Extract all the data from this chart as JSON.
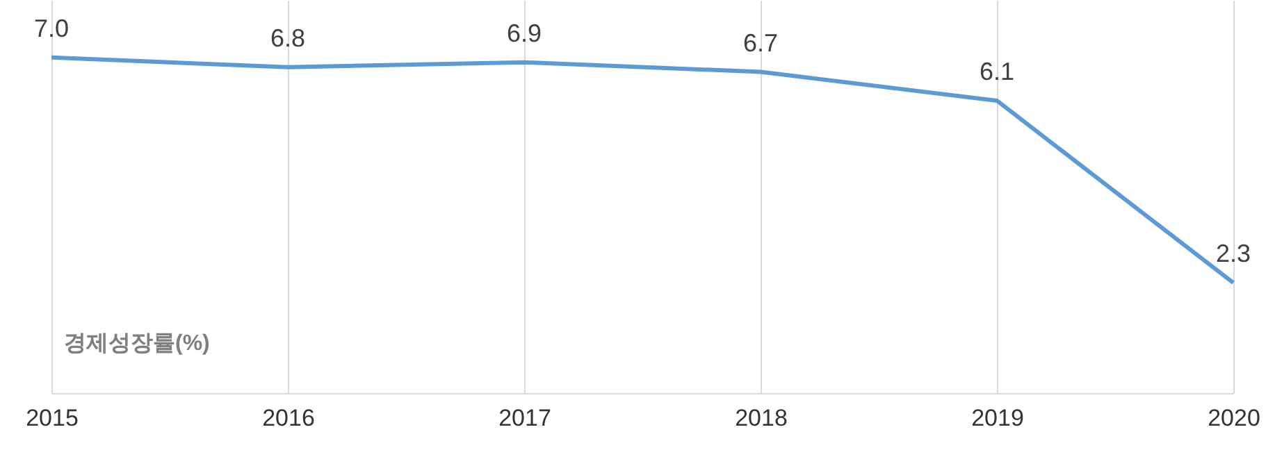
{
  "chart_data": {
    "type": "line",
    "categories": [
      "2015",
      "2016",
      "2017",
      "2018",
      "2019",
      "2020"
    ],
    "series": [
      {
        "color": "#5b9bd5",
        "values": [
          7.0,
          6.8,
          6.9,
          6.7,
          6.1,
          2.3
        ],
        "value_labels": [
          "7.0",
          "6.8",
          "6.9",
          "6.7",
          "6.1",
          "2.3"
        ]
      }
    ],
    "ylim": [
      0,
      8.2
    ],
    "annotations": [
      "경제성장률(%)"
    ],
    "grid": "x",
    "tick_labels": "x",
    "marker": "none",
    "line_style": "solid"
  }
}
